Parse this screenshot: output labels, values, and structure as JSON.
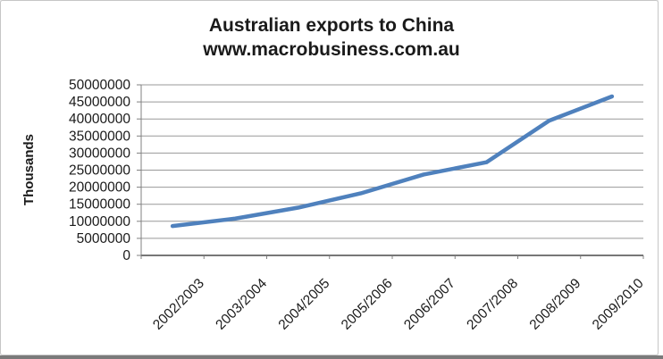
{
  "window": {
    "background": "#ffffff",
    "frame_border_color": "#c6c6c6",
    "bottom_edge_color": "#7a7a7a"
  },
  "chart_data": {
    "type": "line",
    "title": "Australian exports to China",
    "subtitle": "www.macrobusiness.com.au",
    "ylabel": "Thousands",
    "xlabel": "",
    "categories": [
      "2002/2003",
      "2003/2004",
      "2004/2005",
      "2005/2006",
      "2006/2007",
      "2007/2008",
      "2008/2009",
      "2009/2010"
    ],
    "series": [
      {
        "name": "Australian exports to China",
        "values": [
          8600000,
          10800000,
          14000000,
          18200000,
          23700000,
          27300000,
          39500000,
          46600000
        ]
      }
    ],
    "yticks": [
      0,
      5000000,
      10000000,
      15000000,
      20000000,
      25000000,
      30000000,
      35000000,
      40000000,
      45000000,
      50000000
    ],
    "ylim": [
      0,
      50000000
    ],
    "grid": true,
    "legend_position": "none",
    "line_color": "#4F81BD",
    "axis_color": "#808080",
    "gridline_color": "#999999",
    "text_color": "#1a1a1a"
  }
}
